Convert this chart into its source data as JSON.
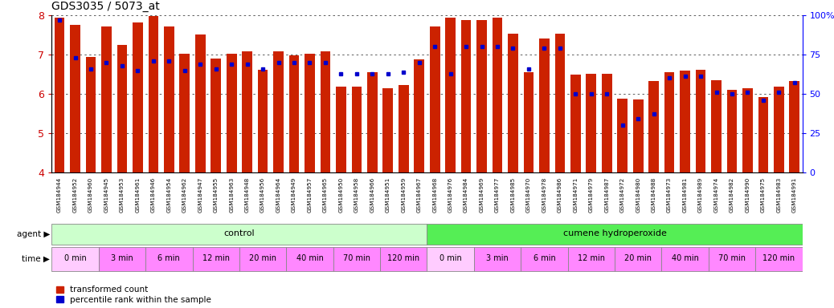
{
  "title": "GDS3035 / 5073_at",
  "samples": [
    "GSM184944",
    "GSM184952",
    "GSM184960",
    "GSM184945",
    "GSM184953",
    "GSM184961",
    "GSM184946",
    "GSM184954",
    "GSM184962",
    "GSM184947",
    "GSM184955",
    "GSM184963",
    "GSM184948",
    "GSM184956",
    "GSM184964",
    "GSM184949",
    "GSM184957",
    "GSM184965",
    "GSM184950",
    "GSM184958",
    "GSM184966",
    "GSM184951",
    "GSM184959",
    "GSM184967",
    "GSM184968",
    "GSM184976",
    "GSM184984",
    "GSM184969",
    "GSM184977",
    "GSM184985",
    "GSM184970",
    "GSM184978",
    "GSM184986",
    "GSM184971",
    "GSM184979",
    "GSM184987",
    "GSM184972",
    "GSM184980",
    "GSM184988",
    "GSM184973",
    "GSM184981",
    "GSM184989",
    "GSM184974",
    "GSM184982",
    "GSM184990",
    "GSM184975",
    "GSM184983",
    "GSM184991"
  ],
  "bar_values": [
    7.95,
    7.75,
    6.95,
    7.72,
    7.25,
    7.82,
    7.98,
    7.72,
    7.02,
    7.52,
    6.9,
    7.02,
    7.08,
    6.62,
    7.08,
    6.98,
    7.02,
    7.08,
    6.18,
    6.18,
    6.55,
    6.15,
    6.22,
    6.88,
    7.72,
    7.95,
    7.88,
    7.88,
    7.95,
    7.53,
    6.55,
    7.42,
    7.53,
    6.48,
    6.5,
    6.5,
    5.88,
    5.85,
    6.32,
    6.55,
    6.6,
    6.62,
    6.35,
    6.1,
    6.15,
    5.92,
    6.18,
    6.32
  ],
  "percentile_values": [
    97,
    73,
    66,
    70,
    68,
    65,
    71,
    71,
    65,
    69,
    66,
    69,
    69,
    66,
    70,
    70,
    70,
    70,
    63,
    63,
    63,
    63,
    64,
    70,
    80,
    63,
    80,
    80,
    80,
    79,
    66,
    79,
    79,
    50,
    50,
    50,
    30,
    34,
    37,
    60,
    61,
    61,
    51,
    50,
    51,
    46,
    51,
    57
  ],
  "ylim": [
    4.0,
    8.0
  ],
  "yticks": [
    4,
    5,
    6,
    7,
    8
  ],
  "right_yticks": [
    0,
    25,
    50,
    75,
    100
  ],
  "bar_color": "#cc2200",
  "dot_color": "#0000cc",
  "bg_color": "#ffffff",
  "agent_control_color": "#ccffcc",
  "agent_cumene_color": "#55ee55",
  "time_color_light": "#ffccff",
  "time_color_dark": "#ff88ff",
  "agent_groups": [
    {
      "label": "control",
      "start": 0,
      "end": 23
    },
    {
      "label": "cumene hydroperoxide",
      "start": 24,
      "end": 47
    }
  ],
  "time_groups": [
    {
      "label": "0 min",
      "start": 0,
      "end": 2,
      "light": true
    },
    {
      "label": "3 min",
      "start": 3,
      "end": 5,
      "light": false
    },
    {
      "label": "6 min",
      "start": 6,
      "end": 8,
      "light": false
    },
    {
      "label": "12 min",
      "start": 9,
      "end": 11,
      "light": false
    },
    {
      "label": "20 min",
      "start": 12,
      "end": 14,
      "light": false
    },
    {
      "label": "40 min",
      "start": 15,
      "end": 17,
      "light": false
    },
    {
      "label": "70 min",
      "start": 18,
      "end": 20,
      "light": false
    },
    {
      "label": "120 min",
      "start": 21,
      "end": 23,
      "light": false
    },
    {
      "label": "0 min",
      "start": 24,
      "end": 26,
      "light": true
    },
    {
      "label": "3 min",
      "start": 27,
      "end": 29,
      "light": false
    },
    {
      "label": "6 min",
      "start": 30,
      "end": 32,
      "light": false
    },
    {
      "label": "12 min",
      "start": 33,
      "end": 35,
      "light": false
    },
    {
      "label": "20 min",
      "start": 36,
      "end": 38,
      "light": false
    },
    {
      "label": "40 min",
      "start": 39,
      "end": 41,
      "light": false
    },
    {
      "label": "70 min",
      "start": 42,
      "end": 44,
      "light": false
    },
    {
      "label": "120 min",
      "start": 45,
      "end": 47,
      "light": false
    }
  ]
}
